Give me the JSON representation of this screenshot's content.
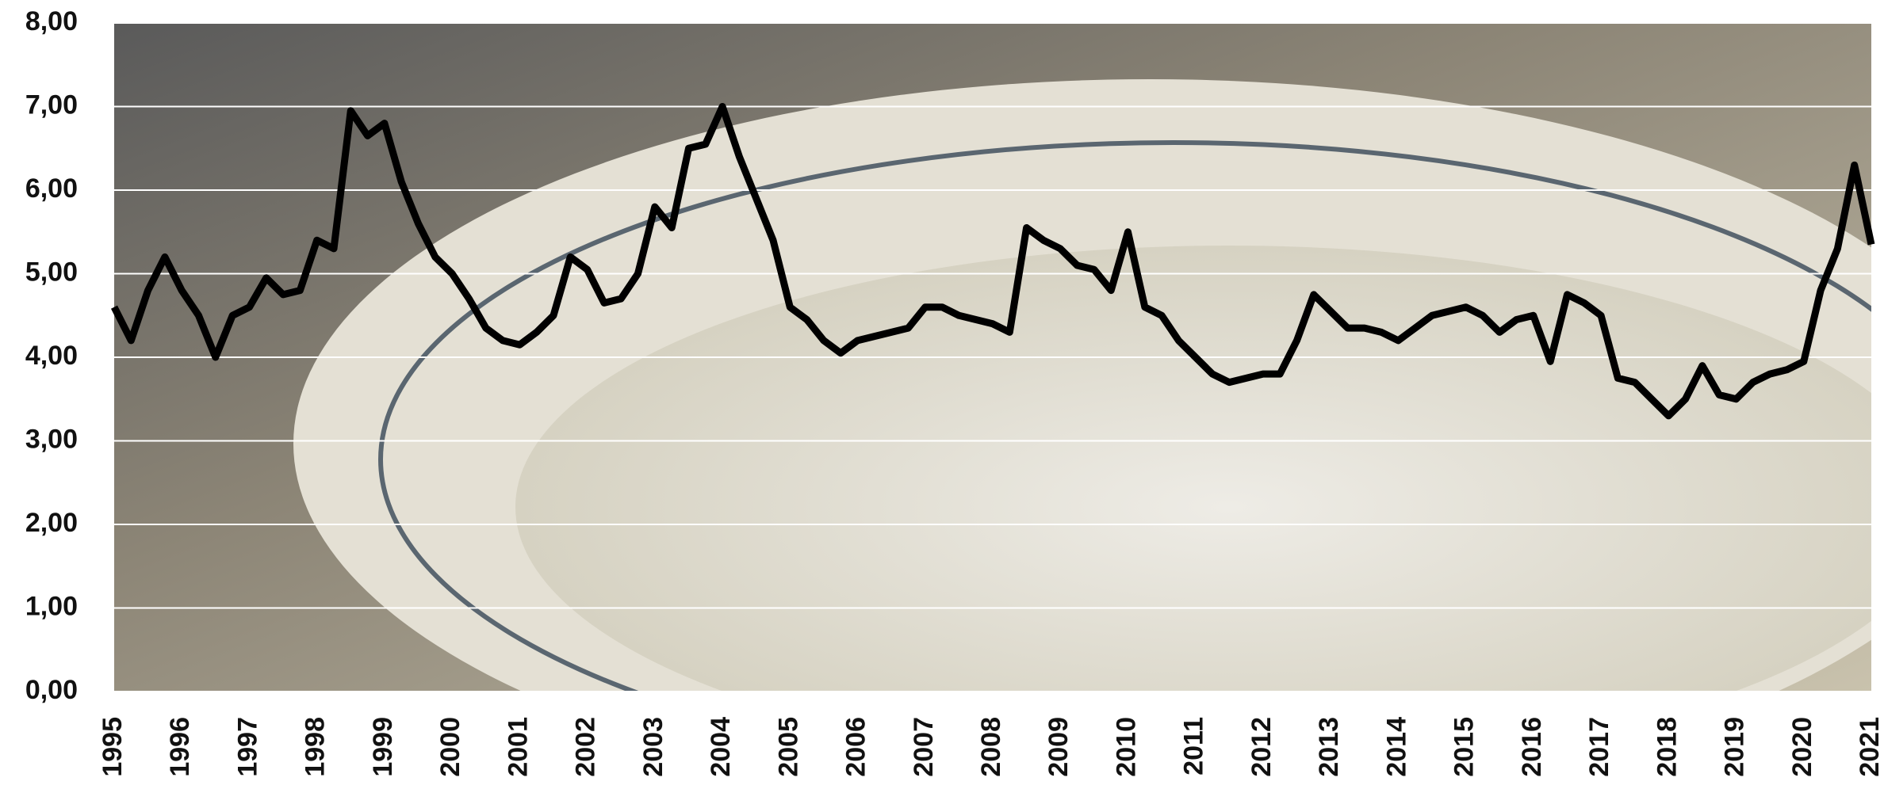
{
  "chart_data": {
    "type": "line",
    "categories": [
      "1995",
      null,
      null,
      null,
      "1996",
      null,
      null,
      null,
      "1997",
      null,
      null,
      null,
      "1998",
      null,
      null,
      null,
      "1999",
      null,
      null,
      null,
      "2000",
      null,
      null,
      null,
      "2001",
      null,
      null,
      null,
      "2002",
      null,
      null,
      null,
      "2003",
      null,
      null,
      null,
      "2004",
      null,
      null,
      null,
      "2005",
      null,
      null,
      null,
      "2006",
      null,
      null,
      null,
      "2007",
      null,
      null,
      null,
      "2008",
      null,
      null,
      null,
      "2009",
      null,
      null,
      null,
      "2010",
      null,
      null,
      null,
      "2011",
      null,
      null,
      null,
      "2012",
      null,
      null,
      null,
      "2013",
      null,
      null,
      null,
      "2014",
      null,
      null,
      null,
      "2015",
      null,
      null,
      null,
      "2016",
      null,
      null,
      null,
      "2017",
      null,
      null,
      null,
      "2018",
      null,
      null,
      null,
      "2019",
      null,
      null,
      null,
      "2020",
      null,
      null,
      null,
      "2021"
    ],
    "values": [
      4.6,
      4.2,
      4.8,
      5.2,
      4.8,
      4.5,
      4.0,
      4.5,
      4.6,
      4.95,
      4.75,
      4.8,
      5.4,
      5.3,
      6.95,
      6.65,
      6.8,
      6.1,
      5.6,
      5.2,
      5.0,
      4.7,
      4.35,
      4.2,
      4.15,
      4.3,
      4.5,
      5.2,
      5.05,
      4.65,
      4.7,
      5.0,
      5.8,
      5.55,
      6.5,
      6.55,
      7.0,
      6.4,
      5.9,
      5.4,
      4.6,
      4.45,
      4.2,
      4.05,
      4.2,
      4.25,
      4.3,
      4.35,
      4.6,
      4.6,
      4.5,
      4.45,
      4.4,
      4.3,
      5.55,
      5.4,
      5.3,
      5.1,
      5.05,
      4.8,
      5.5,
      4.6,
      4.5,
      4.2,
      4.0,
      3.8,
      3.7,
      3.75,
      3.8,
      3.8,
      4.2,
      4.75,
      4.55,
      4.35,
      4.35,
      4.3,
      4.2,
      4.35,
      4.5,
      4.55,
      4.6,
      4.5,
      4.3,
      4.45,
      4.5,
      3.95,
      4.75,
      4.65,
      4.5,
      3.75,
      3.7,
      3.5,
      3.3,
      3.5,
      3.9,
      3.55,
      3.5,
      3.7,
      3.8,
      3.85,
      3.95,
      4.8,
      5.3,
      6.3,
      5.35
    ],
    "color": "#000000",
    "ylim": [
      0,
      8
    ],
    "yticks": [
      {
        "value": 0,
        "label": "0,00"
      },
      {
        "value": 1,
        "label": "1,00"
      },
      {
        "value": 2,
        "label": "2,00"
      },
      {
        "value": 3,
        "label": "3,00"
      },
      {
        "value": 4,
        "label": "4,00"
      },
      {
        "value": 5,
        "label": "5,00"
      },
      {
        "value": 6,
        "label": "6,00"
      },
      {
        "value": 7,
        "label": "7,00"
      },
      {
        "value": 8,
        "label": "8,00"
      }
    ],
    "grid": true
  }
}
